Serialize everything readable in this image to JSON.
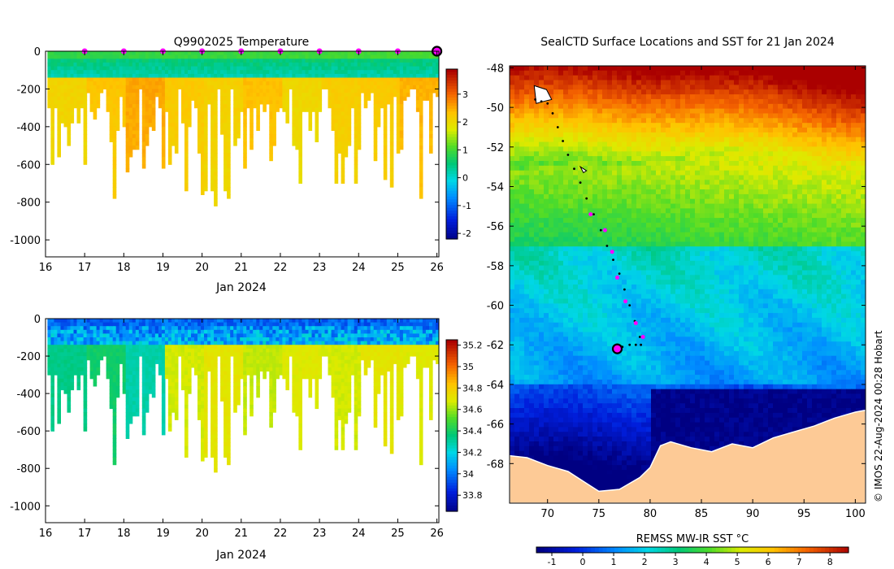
{
  "credit": "© IMOS 22-Aug-2024 00:28 Hobart",
  "chart_data": [
    {
      "type": "heatmap",
      "name": "temperature-profile",
      "title": "Q9902025  Temperature",
      "xlabel": "Jan 2024",
      "ylabel": "",
      "x_ticks": [
        16,
        17,
        18,
        19,
        20,
        21,
        22,
        23,
        24,
        25,
        26
      ],
      "xlim": [
        16,
        26.05
      ],
      "y_ticks": [
        0,
        -200,
        -400,
        -600,
        -800,
        -1000
      ],
      "ylim": [
        -1090,
        0
      ],
      "colorbar": {
        "range": [
          -2.2,
          3.9
        ],
        "ticks": [
          3,
          2,
          1,
          0,
          -1,
          -2
        ],
        "tick_labels": [
          "3",
          "2",
          "1",
          "0",
          "-1",
          "-2"
        ]
      },
      "surface_markers_day": [
        17,
        18,
        19,
        20,
        21,
        22,
        23,
        24,
        25
      ],
      "last_marker_day": 26,
      "surface_value": 0.9,
      "surface_ramp": 0.12,
      "mid_value": 0.2,
      "deep_value": 2.2,
      "deep_trend": -0.02,
      "deep_variation": 0.15,
      "deep_start_values": [
        2.15,
        2.35,
        2.6,
        2.3,
        2.2,
        2.4,
        2.1,
        2.25,
        2.3,
        2.5
      ]
    },
    {
      "type": "heatmap",
      "name": "salinity-profile",
      "title": "",
      "xlabel": "Jan 2024",
      "ylabel": "",
      "x_ticks": [
        16,
        17,
        18,
        19,
        20,
        21,
        22,
        23,
        24,
        25,
        26
      ],
      "xlim": [
        16,
        26.05
      ],
      "y_ticks": [
        0,
        -200,
        -400,
        -600,
        -800,
        -1000
      ],
      "ylim": [
        -1090,
        0
      ],
      "colorbar": {
        "range": [
          33.65,
          35.25
        ],
        "ticks": [
          35.2,
          35,
          34.8,
          34.6,
          34.4,
          34.2,
          34,
          33.8
        ],
        "tick_labels": [
          "35.2",
          "35",
          "34.8",
          "34.6",
          "34.4",
          "34.2",
          "34",
          "33.8"
        ]
      },
      "surface_value": 33.98,
      "surface_ramp": 0.0,
      "mid_value": 34.15,
      "deep_value": 34.72,
      "deep_trend": 0.0,
      "deep_variation": 0.04,
      "deep_start_values": [
        34.35,
        34.4,
        34.3,
        34.68,
        34.72,
        34.66,
        34.7,
        34.68,
        34.72,
        34.7
      ]
    },
    {
      "type": "heatmap",
      "name": "sst-map",
      "title": "SealCTD Surface Locations and SST for 21 Jan 2024",
      "xlabel": "REMSS MW-IR SST °C",
      "x_ticks": [
        70,
        75,
        80,
        85,
        90,
        95,
        100
      ],
      "xlim": [
        66.3,
        101
      ],
      "y_ticks": [
        -48,
        -50,
        -52,
        -54,
        -56,
        -58,
        -60,
        -62,
        -64,
        -66,
        -68
      ],
      "ylim": [
        -70.0,
        -47.9
      ],
      "colorbar": {
        "range": [
          -1.5,
          8.6
        ],
        "ticks": [
          -1,
          0,
          1,
          2,
          3,
          4,
          5,
          6,
          7,
          8
        ],
        "tick_labels": [
          "-1",
          "0",
          "1",
          "2",
          "3",
          "4",
          "5",
          "6",
          "7",
          "8"
        ]
      },
      "land_color": "#fdca96",
      "track": [
        [
          68.8,
          -49.6
        ],
        [
          69.4,
          -49.7
        ],
        [
          70.0,
          -49.8
        ],
        [
          70.5,
          -50.3
        ],
        [
          71.0,
          -51.0
        ],
        [
          71.5,
          -51.7
        ],
        [
          72.0,
          -52.4
        ],
        [
          72.6,
          -53.1
        ],
        [
          73.2,
          -53.8
        ],
        [
          73.8,
          -54.6
        ],
        [
          74.5,
          -55.4
        ],
        [
          75.2,
          -56.2
        ],
        [
          75.8,
          -57.0
        ],
        [
          76.4,
          -57.7
        ],
        [
          77.0,
          -58.4
        ],
        [
          77.5,
          -59.2
        ],
        [
          78.0,
          -60.0
        ],
        [
          78.5,
          -60.8
        ],
        [
          79.0,
          -61.6
        ],
        [
          79.1,
          -62.0
        ],
        [
          78.6,
          -62.0
        ],
        [
          78.0,
          -62.0
        ],
        [
          77.3,
          -62.1
        ],
        [
          76.8,
          -62.2
        ]
      ],
      "track_markers": [
        [
          74.2,
          -55.4
        ],
        [
          75.6,
          -56.2
        ],
        [
          76.3,
          -57.3
        ],
        [
          76.8,
          -58.6
        ],
        [
          77.6,
          -59.8
        ],
        [
          78.6,
          -60.9
        ],
        [
          79.3,
          -61.6
        ]
      ],
      "last_position": [
        76.8,
        -62.2
      ]
    }
  ]
}
